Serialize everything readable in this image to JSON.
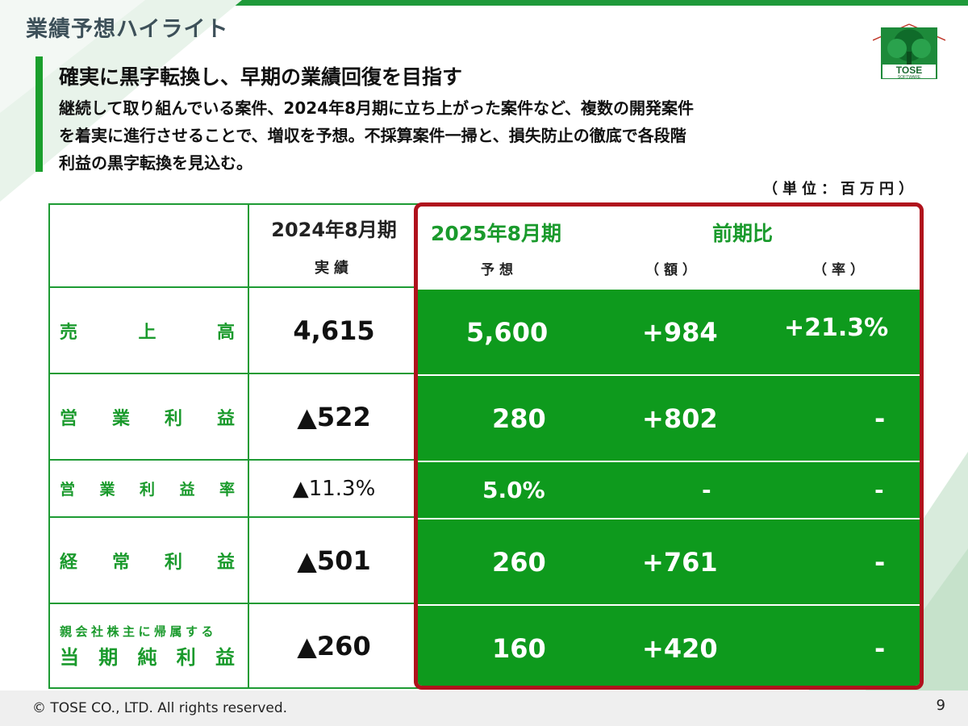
{
  "slide": {
    "title": "業績予想ハイライト",
    "headline": "確実に黒字転換し、早期の業績回復を目指す",
    "body_lines": [
      "継続して取り組んでいる案件、2024年8月期に立ち上がった案件など、複数の開発案件",
      "を着実に進行させることで、増収を予想。不採算案件一掃と、損失防止の徹底で各段階",
      "利益の黒字転換を見込む。"
    ],
    "unit": "（単位：百万円）"
  },
  "logo": {
    "text": "TOSE",
    "subtext": "SOFTWARE"
  },
  "table": {
    "prev_period": "2024年8月期",
    "prev_sub": "実績",
    "forecast_period": "2025年8月期",
    "forecast_sub": "予想",
    "yoy": "前期比",
    "yoy_amount": "（額）",
    "yoy_rate": "（率）",
    "rows": [
      {
        "label_chars": [
          "売",
          "上",
          "高"
        ],
        "actual": "4,615",
        "forecast": "5,600",
        "diff": "+984",
        "rate": "+21.3%"
      },
      {
        "label_chars": [
          "営",
          "業",
          "利",
          "益"
        ],
        "actual": "▲522",
        "forecast": "280",
        "diff": "+802",
        "rate": "-"
      },
      {
        "label_chars": [
          "営",
          "業",
          "利",
          "益",
          "率"
        ],
        "actual": "▲11.3%",
        "forecast": "5.0%",
        "diff": "-",
        "rate": "-"
      },
      {
        "label_chars": [
          "経",
          "常",
          "利",
          "益"
        ],
        "actual": "▲501",
        "forecast": "260",
        "diff": "+761",
        "rate": "-"
      },
      {
        "label_top": "親会社株主に帰属する",
        "label_chars": [
          "当",
          "期",
          "純",
          "利",
          "益"
        ],
        "actual": "▲260",
        "forecast": "160",
        "diff": "+420",
        "rate": "-"
      }
    ]
  },
  "footer": {
    "copyright": "© TOSE CO., LTD. All rights reserved.",
    "page": "9"
  },
  "colors": {
    "green": "#0e9a1d",
    "accent_green": "#1a9a2c",
    "frame_red": "#b0121c"
  }
}
